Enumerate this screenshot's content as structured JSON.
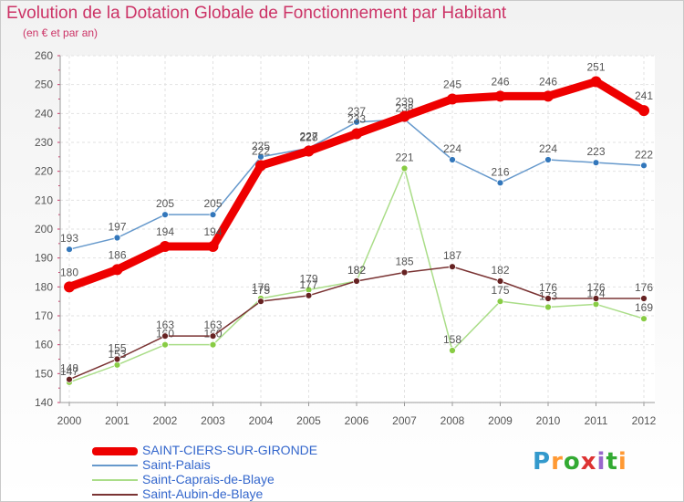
{
  "header": {
    "title": "Evolution de la Dotation Globale de Fonctionnement par Habitant",
    "subtitle": "(en € et par an)"
  },
  "logo": {
    "text": "Proxiti",
    "colors": [
      "#3399cc",
      "#ff9933",
      "#33aa33",
      "#dd3333",
      "#9966cc",
      "#33aa33",
      "#ff9933"
    ]
  },
  "chart_data": {
    "type": "line",
    "title": "Evolution de la Dotation Globale de Fonctionnement par Habitant",
    "subtitle": "(en € et par an)",
    "xlabel": "",
    "ylabel": "",
    "x": [
      "2000",
      "2001",
      "2002",
      "2003",
      "2004",
      "2005",
      "2006",
      "2007",
      "2008",
      "2009",
      "2010",
      "2011",
      "2012"
    ],
    "ylim": [
      140,
      260
    ],
    "yticks": [
      140,
      150,
      160,
      170,
      180,
      190,
      200,
      210,
      220,
      230,
      240,
      250,
      260
    ],
    "grid": true,
    "legend_position": "bottom-left",
    "series": [
      {
        "name": "SAINT-CIERS-SUR-GIRONDE",
        "color": "#ee0000",
        "marker_color": "#ee0000",
        "thick": true,
        "values": [
          180,
          186,
          194,
          194,
          222,
          227,
          233,
          239,
          245,
          246,
          246,
          251,
          241
        ]
      },
      {
        "name": "Saint-Palais",
        "color": "#6699cc",
        "marker_color": "#3377bb",
        "thick": false,
        "values": [
          193,
          197,
          205,
          205,
          225,
          228,
          237,
          238,
          224,
          216,
          224,
          223,
          222
        ]
      },
      {
        "name": "Saint-Caprais-de-Blaye",
        "color": "#aadd88",
        "marker_color": "#88cc44",
        "thick": false,
        "values": [
          147,
          153,
          160,
          160,
          176,
          179,
          182,
          221,
          158,
          175,
          173,
          174,
          169
        ]
      },
      {
        "name": "Saint-Aubin-de-Blaye",
        "color": "#7a3333",
        "marker_color": "#662222",
        "thick": false,
        "values": [
          148,
          155,
          163,
          163,
          175,
          177,
          182,
          185,
          187,
          182,
          176,
          176,
          176
        ]
      }
    ]
  }
}
